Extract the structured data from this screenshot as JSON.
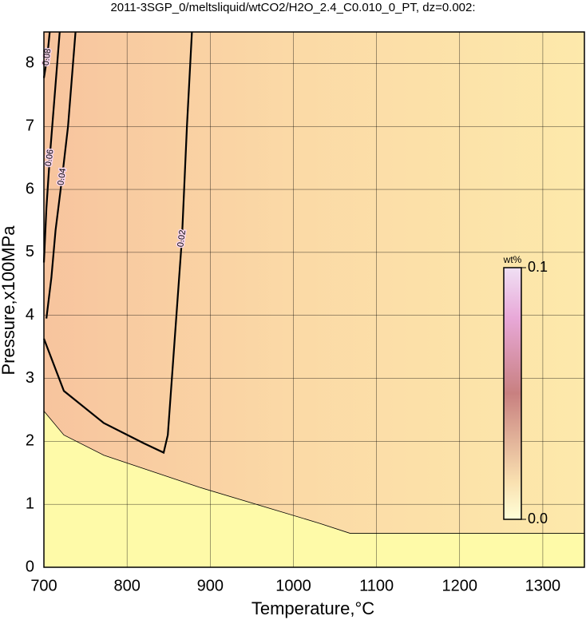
{
  "chart_data": {
    "type": "contour",
    "title": "2011-3SGP_0/meltsliquid/wtCO2/H2O_2.4_C0.010_0_PT, dz=0.002:",
    "x_label": "Temperature,°C",
    "y_label": "Pressure,x100MPa",
    "xlim": [
      700,
      1350
    ],
    "ylim": [
      0,
      8.5
    ],
    "xticks": [
      700,
      800,
      900,
      1000,
      1100,
      1200,
      1300
    ],
    "yticks": [
      0,
      1,
      2,
      3,
      4,
      5,
      6,
      7,
      8
    ],
    "grid": true,
    "contours": [
      {
        "level": 0.002,
        "x": [
          700,
          724,
          772,
          887,
          1031,
          1068,
          1350
        ],
        "y": [
          2.48,
          2.1,
          1.78,
          1.27,
          0.7,
          0.54,
          0.54
        ]
      },
      {
        "level": 0.02,
        "x": [
          700,
          724,
          772,
          820,
          844,
          849,
          866,
          872,
          878
        ],
        "y": [
          3.63,
          2.8,
          2.29,
          1.97,
          1.82,
          2.1,
          5.22,
          7.0,
          8.5
        ]
      },
      {
        "level": 0.04,
        "x": [
          703,
          709,
          714,
          722,
          729,
          738
        ],
        "y": [
          3.95,
          4.6,
          5.35,
          6.2,
          7.0,
          8.5
        ]
      },
      {
        "level": 0.06,
        "x": [
          700,
          703,
          707,
          713,
          719
        ],
        "y": [
          4.84,
          5.7,
          6.5,
          7.5,
          8.5
        ]
      },
      {
        "level": 0.08,
        "x": [
          700,
          704,
          707
        ],
        "y": [
          7.77,
          8.1,
          8.5
        ]
      }
    ],
    "colorbar_label": "wt%",
    "clim": [
      0,
      0.1
    ],
    "colorbar_ticks": [
      {
        "value": 0,
        "label": "0.0"
      },
      {
        "value": 0.1,
        "label": "0.1"
      }
    ]
  }
}
